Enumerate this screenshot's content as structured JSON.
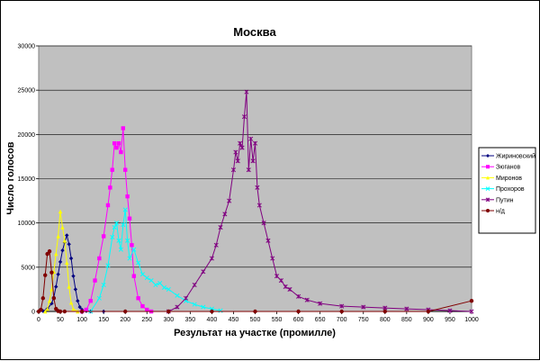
{
  "chart_data": {
    "type": "line",
    "title": "Москва",
    "xlabel": "Результат на участке (промилле)",
    "ylabel": "Число голосов",
    "xlim": [
      0,
      1000
    ],
    "ylim": [
      0,
      30000
    ],
    "x_ticks": [
      0,
      50,
      100,
      150,
      200,
      250,
      300,
      350,
      400,
      450,
      500,
      550,
      600,
      650,
      700,
      750,
      800,
      850,
      900,
      950,
      1000
    ],
    "y_ticks": [
      0,
      5000,
      10000,
      15000,
      20000,
      25000,
      30000
    ],
    "grid": "horizontal",
    "plot_background": "#c0c0c0",
    "legend_position": "right",
    "series": [
      {
        "name": "Жириновский",
        "color": "#000080",
        "marker": "diamond",
        "x": [
          0,
          10,
          20,
          30,
          35,
          40,
          45,
          50,
          55,
          60,
          65,
          70,
          75,
          80,
          85,
          90,
          95,
          100,
          110,
          120,
          150,
          200
        ],
        "y": [
          0,
          50,
          300,
          900,
          1600,
          2800,
          4200,
          5600,
          6900,
          7800,
          8600,
          7600,
          6000,
          4000,
          2500,
          1200,
          500,
          200,
          50,
          10,
          0,
          0
        ]
      },
      {
        "name": "Зюганов",
        "color": "#ff00ff",
        "marker": "square",
        "x": [
          100,
          110,
          120,
          130,
          140,
          150,
          160,
          165,
          170,
          175,
          180,
          185,
          190,
          195,
          200,
          205,
          210,
          215,
          220,
          230,
          240,
          250,
          260
        ],
        "y": [
          0,
          200,
          1200,
          3500,
          6000,
          8500,
          12000,
          14000,
          16000,
          19000,
          18500,
          19000,
          18000,
          20700,
          16000,
          13000,
          10500,
          7500,
          4000,
          1500,
          600,
          200,
          0
        ]
      },
      {
        "name": "Миронов",
        "color": "#ffff00",
        "marker": "triangle",
        "x": [
          15,
          20,
          25,
          30,
          35,
          40,
          45,
          50,
          55,
          60,
          65,
          70,
          75,
          80,
          90
        ],
        "y": [
          0,
          300,
          1200,
          2500,
          4500,
          6500,
          8500,
          11300,
          9500,
          8000,
          5500,
          2800,
          1000,
          300,
          0
        ]
      },
      {
        "name": "Прохоров",
        "color": "#00ffff",
        "marker": "x",
        "x": [
          120,
          140,
          150,
          160,
          170,
          175,
          180,
          185,
          190,
          195,
          200,
          205,
          210,
          220,
          230,
          240,
          250,
          260,
          270,
          280,
          290,
          300,
          320,
          340,
          360,
          380,
          400,
          420
        ],
        "y": [
          0,
          1500,
          3000,
          5200,
          8400,
          9500,
          10000,
          8000,
          7000,
          9800,
          11500,
          8000,
          6000,
          7000,
          5500,
          4200,
          3800,
          3500,
          3000,
          3200,
          2700,
          2500,
          1800,
          1200,
          800,
          500,
          300,
          100
        ]
      },
      {
        "name": "Путин",
        "color": "#800080",
        "marker": "star",
        "x": [
          300,
          320,
          340,
          360,
          380,
          400,
          410,
          420,
          430,
          440,
          450,
          455,
          460,
          465,
          470,
          475,
          480,
          485,
          490,
          495,
          500,
          505,
          510,
          520,
          530,
          540,
          550,
          560,
          570,
          580,
          600,
          620,
          650,
          700,
          750,
          800,
          850,
          900,
          950,
          1000
        ],
        "y": [
          0,
          500,
          1500,
          3000,
          4500,
          6000,
          7500,
          9500,
          11000,
          12500,
          16000,
          18000,
          17000,
          19000,
          18500,
          22000,
          24800,
          16000,
          19500,
          17000,
          19000,
          14000,
          12000,
          10000,
          8000,
          6000,
          4000,
          3500,
          2800,
          2500,
          1700,
          1300,
          900,
          600,
          500,
          400,
          300,
          200,
          100,
          0
        ]
      },
      {
        "name": "н/д",
        "color": "#800000",
        "marker": "circle",
        "x": [
          0,
          5,
          10,
          15,
          20,
          25,
          30,
          35,
          40,
          45,
          50,
          60,
          100,
          200,
          300,
          400,
          500,
          600,
          700,
          800,
          900,
          1000
        ],
        "y": [
          0,
          200,
          1500,
          4100,
          6500,
          6800,
          4400,
          1500,
          300,
          50,
          0,
          0,
          0,
          0,
          0,
          0,
          0,
          0,
          0,
          0,
          0,
          1200
        ]
      }
    ]
  }
}
